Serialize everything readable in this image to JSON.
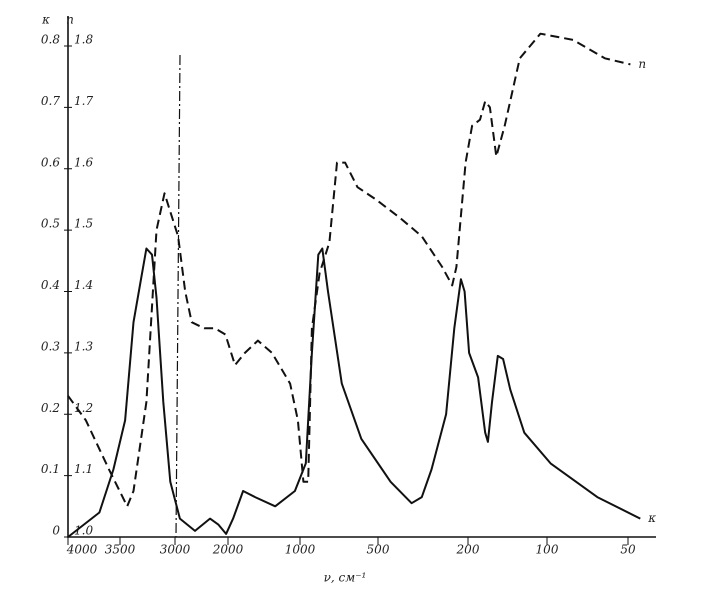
{
  "chart_data": {
    "type": "line",
    "ylabel": "κ",
    "y2label": "n",
    "xlabel": "ν, см⁻¹",
    "xlim": [
      4000,
      45
    ],
    "xticks": [
      4000,
      3500,
      3000,
      2000,
      1000,
      500,
      200,
      100,
      50
    ],
    "ylim": [
      0,
      0.8
    ],
    "yticks": [
      0,
      0.1,
      0.2,
      0.3,
      0.4,
      0.5,
      0.6,
      0.7,
      0.8
    ],
    "y2lim": [
      1,
      1.8
    ],
    "y2ticks": [
      {
        "value": 1,
        "label": "1.0"
      },
      1.1,
      1.2,
      1.3,
      1.4,
      1.5,
      1.6,
      1.7,
      1.8
    ],
    "series": [
      {
        "name": "κ",
        "color": "#111111",
        "line_style": "solid",
        "axis": "y",
        "x": [
          4000,
          3690,
          3560,
          3450,
          3370,
          3300,
          3250,
          3200,
          3160,
          3100,
          3040,
          2890,
          2575,
          2295,
          2150,
          2030,
          1905,
          1730,
          1540,
          1270,
          1050,
          950,
          900,
          850,
          820,
          780,
          690,
          580,
          440,
          355,
          320,
          290,
          250,
          230,
          215,
          207,
          198,
          183,
          172,
          168,
          162,
          154,
          147,
          138,
          122,
          97,
          65,
          45
        ],
        "values": [
          0,
          0.04,
          0.11,
          0.19,
          0.35,
          0.42,
          0.47,
          0.46,
          0.39,
          0.22,
          0.09,
          0.03,
          0.01,
          0.03,
          0.02,
          0.005,
          0.03,
          0.075,
          0.065,
          0.05,
          0.075,
          0.12,
          0.3,
          0.46,
          0.47,
          0.4,
          0.25,
          0.16,
          0.09,
          0.055,
          0.065,
          0.11,
          0.2,
          0.34,
          0.42,
          0.4,
          0.3,
          0.26,
          0.17,
          0.155,
          0.22,
          0.295,
          0.29,
          0.24,
          0.17,
          0.12,
          0.065,
          0.03
        ]
      },
      {
        "name": "n",
        "color": "#111111",
        "line_style": "dashed",
        "axis": "y2",
        "x": [
          4000,
          3820,
          3600,
          3430,
          3370,
          3250,
          3160,
          3090,
          3040,
          2930,
          2775,
          2640,
          2400,
          2210,
          2040,
          1870,
          1700,
          1500,
          1310,
          1100,
          1020,
          970,
          930,
          900,
          840,
          770,
          720,
          670,
          600,
          510,
          400,
          320,
          260,
          235,
          225,
          205,
          193,
          180,
          172,
          165,
          156,
          145,
          127,
          106,
          80,
          61,
          49
        ],
        "values": [
          1.23,
          1.19,
          1.11,
          1.05,
          1.075,
          1.22,
          1.5,
          1.56,
          1.53,
          1.49,
          1.4,
          1.35,
          1.34,
          1.34,
          1.33,
          1.28,
          1.3,
          1.32,
          1.3,
          1.25,
          1.19,
          1.09,
          1.09,
          1.34,
          1.43,
          1.48,
          1.61,
          1.61,
          1.57,
          1.55,
          1.52,
          1.49,
          1.44,
          1.41,
          1.44,
          1.61,
          1.67,
          1.68,
          1.71,
          1.7,
          1.62,
          1.67,
          1.78,
          1.82,
          1.81,
          1.78,
          1.77
        ]
      }
    ]
  }
}
